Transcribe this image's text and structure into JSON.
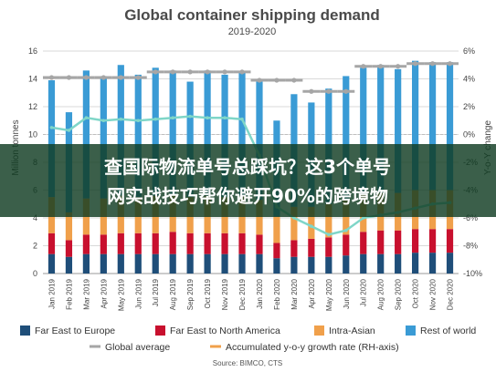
{
  "chart_data": {
    "type": "bar",
    "title": "Global container shipping demand",
    "subtitle": "2019-2020",
    "ylabel": "Million tonnes",
    "y2label": "Y-o-Y change",
    "ylim": [
      0,
      16
    ],
    "y2lim": [
      -10,
      6
    ],
    "yticks": [
      "0",
      "2",
      "4",
      "6",
      "8",
      "10",
      "12",
      "14",
      "16"
    ],
    "y2ticks": [
      "-10%",
      "-8%",
      "-6%",
      "-4%",
      "-2%",
      "0%",
      "2%",
      "4%",
      "6%"
    ],
    "categories": [
      "Jan 2019",
      "Feb 2019",
      "Mar 2019",
      "Apr 2019",
      "May 2019",
      "Jun 2019",
      "Jul 2019",
      "Aug 2019",
      "Sep 2019",
      "Oct 2019",
      "Nov 2019",
      "Dec 2019",
      "Jan 2020",
      "Feb 2020",
      "Mar 2020",
      "Apr 2020",
      "May 2020",
      "Jun 2020",
      "Jul 2020",
      "Aug 2020",
      "Sep 2020",
      "Oct 2020",
      "Nov 2020",
      "Dec 2020"
    ],
    "stacked": true,
    "series": [
      {
        "name": "Far East to Europe",
        "color": "#1f4e79",
        "values": [
          1.4,
          1.2,
          1.4,
          1.4,
          1.4,
          1.4,
          1.4,
          1.4,
          1.4,
          1.4,
          1.4,
          1.4,
          1.4,
          1.1,
          1.2,
          1.2,
          1.2,
          1.3,
          1.4,
          1.4,
          1.4,
          1.5,
          1.5,
          1.5
        ]
      },
      {
        "name": "Far East to North America",
        "color": "#c8102e",
        "values": [
          1.5,
          1.2,
          1.4,
          1.4,
          1.5,
          1.5,
          1.5,
          1.6,
          1.5,
          1.5,
          1.5,
          1.5,
          1.4,
          1.1,
          1.2,
          1.3,
          1.4,
          1.5,
          1.6,
          1.7,
          1.7,
          1.7,
          1.7,
          1.7
        ]
      },
      {
        "name": "Intra-Asian",
        "color": "#f0a04b",
        "values": [
          2.6,
          2.0,
          2.6,
          2.6,
          2.7,
          2.6,
          2.7,
          2.7,
          2.6,
          2.7,
          2.6,
          2.7,
          2.5,
          1.9,
          2.4,
          2.3,
          2.4,
          2.5,
          2.7,
          2.7,
          2.7,
          2.8,
          2.8,
          2.8
        ]
      },
      {
        "name": "Rest of world",
        "color": "#3a9bd5",
        "values": [
          8.4,
          7.2,
          9.2,
          8.8,
          9.4,
          8.8,
          9.2,
          8.9,
          8.3,
          9.0,
          8.8,
          8.9,
          8.5,
          6.9,
          8.1,
          7.5,
          8.3,
          8.9,
          9.1,
          9.2,
          8.9,
          9.3,
          9.2,
          9.2
        ]
      }
    ],
    "lines": [
      {
        "name": "Global average",
        "axis": "left",
        "color": "#a6a6a6",
        "values": [
          14.1,
          14.1,
          14.1,
          14.1,
          14.1,
          14.1,
          14.5,
          14.5,
          14.5,
          14.5,
          14.5,
          14.5,
          13.9,
          13.9,
          13.9,
          13.1,
          13.1,
          13.1,
          14.9,
          14.9,
          14.9,
          15.1,
          15.1,
          15.1
        ]
      },
      {
        "name": "Accumulated y-o-y growth rate (RH-axis)",
        "axis": "right",
        "color": "#7fd6c8",
        "values": [
          0.5,
          0.3,
          1.2,
          1.0,
          1.1,
          1.0,
          1.1,
          1.2,
          1.3,
          1.2,
          1.2,
          1.1,
          -1.5,
          -5.2,
          -6.0,
          -6.6,
          -7.2,
          -6.9,
          -6.0,
          -5.8,
          -5.6,
          -5.3,
          -5.0,
          -4.9
        ]
      }
    ],
    "grid": true,
    "legend_position": "bottom",
    "source": "Source: BIMCO, CTS"
  },
  "banner": {
    "line1": "查国际物流单号总踩坑？这3个单号",
    "line2": "网实战技巧帮你避开90%的跨境物"
  }
}
